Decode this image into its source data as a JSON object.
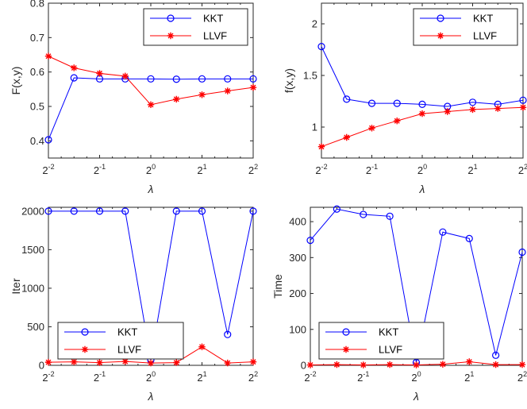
{
  "colors": {
    "kkt": "#0000ff",
    "llvf": "#ff0000",
    "axis": "#262626"
  },
  "chart_data": [
    {
      "type": "line",
      "ylabel": "F(x,y)",
      "xlabel": "λ",
      "x": [
        -2,
        -1.75,
        -1.5,
        -1.25,
        -1,
        -0.75,
        -0.5,
        -0.25,
        0,
        0.25,
        0.5,
        0.75,
        1,
        1.25,
        1.5,
        1.75,
        2
      ],
      "xlim": [
        -2,
        2
      ],
      "ylim": [
        0.35,
        0.8
      ],
      "yticks": [
        0.4,
        0.5,
        0.6,
        0.7,
        0.8
      ],
      "ytick_labels": [
        "0.4",
        "0.5",
        "0.6",
        "0.7",
        "0.8"
      ],
      "xticks": [
        {
          "value": -2,
          "base": "2",
          "exp": "-2"
        },
        {
          "value": -1,
          "base": "2",
          "exp": "-1"
        },
        {
          "value": 0,
          "base": "2",
          "exp": "0"
        },
        {
          "value": 1,
          "base": "2",
          "exp": "1"
        },
        {
          "value": 2,
          "base": "2",
          "exp": "2"
        }
      ],
      "legend_position": "top-right",
      "series": [
        {
          "name": "KKT",
          "x": [
            -2,
            -1.5,
            -1,
            -0.5,
            0,
            0.5,
            1,
            1.5,
            2
          ],
          "values": [
            0.403,
            0.583,
            0.58,
            0.58,
            0.58,
            0.579,
            0.58,
            0.58,
            0.58
          ],
          "marker": "circle",
          "color": "#0000ff"
        },
        {
          "name": "LLVF",
          "x": [
            -2,
            -1.5,
            -1,
            -0.5,
            0,
            0.5,
            1,
            1.5,
            2
          ],
          "values": [
            0.646,
            0.612,
            0.596,
            0.588,
            0.505,
            0.521,
            0.534,
            0.545,
            0.555
          ],
          "marker": "asterisk",
          "color": "#ff0000"
        }
      ]
    },
    {
      "type": "line",
      "ylabel": "f(x,y)",
      "xlabel": "λ",
      "xlim": [
        -2,
        2
      ],
      "ylim": [
        0.7,
        2.2
      ],
      "yticks": [
        1,
        1.5,
        2
      ],
      "ytick_labels": [
        "1",
        "1.5",
        "2"
      ],
      "xticks": [
        {
          "value": -2,
          "base": "2",
          "exp": "-2"
        },
        {
          "value": -1,
          "base": "2",
          "exp": "-1"
        },
        {
          "value": 0,
          "base": "2",
          "exp": "0"
        },
        {
          "value": 1,
          "base": "2",
          "exp": "1"
        },
        {
          "value": 2,
          "base": "2",
          "exp": "2"
        }
      ],
      "legend_position": "top-right",
      "series": [
        {
          "name": "KKT",
          "x": [
            -2,
            -1.5,
            -1,
            -0.5,
            0,
            0.5,
            1,
            1.5,
            2
          ],
          "values": [
            1.78,
            1.27,
            1.23,
            1.23,
            1.22,
            1.2,
            1.24,
            1.22,
            1.26
          ],
          "marker": "circle",
          "color": "#0000ff"
        },
        {
          "name": "LLVF",
          "x": [
            -2,
            -1.5,
            -1,
            -0.5,
            0,
            0.5,
            1,
            1.5,
            2
          ],
          "values": [
            0.81,
            0.9,
            0.99,
            1.06,
            1.13,
            1.15,
            1.17,
            1.18,
            1.19
          ],
          "marker": "asterisk",
          "color": "#ff0000"
        }
      ]
    },
    {
      "type": "line",
      "ylabel": "Iter",
      "xlabel": "λ",
      "xlim": [
        -2,
        2
      ],
      "ylim": [
        0,
        2050
      ],
      "yticks": [
        0,
        500,
        1000,
        1500,
        2000
      ],
      "ytick_labels": [
        "0",
        "500",
        "1000",
        "1500",
        "2000"
      ],
      "xticks": [
        {
          "value": -2,
          "base": "2",
          "exp": "-2"
        },
        {
          "value": -1,
          "base": "2",
          "exp": "-1"
        },
        {
          "value": 0,
          "base": "2",
          "exp": "0"
        },
        {
          "value": 1,
          "base": "2",
          "exp": "1"
        },
        {
          "value": 2,
          "base": "2",
          "exp": "2"
        }
      ],
      "legend_position": "bottom-left",
      "series": [
        {
          "name": "KKT",
          "x": [
            -2,
            -1.5,
            -1,
            -0.5,
            0,
            0.5,
            1,
            1.5,
            2
          ],
          "values": [
            2000,
            2000,
            2000,
            2000,
            70,
            2000,
            2000,
            400,
            2000
          ],
          "marker": "circle",
          "color": "#0000ff"
        },
        {
          "name": "LLVF",
          "x": [
            -2,
            -1.5,
            -1,
            -0.5,
            0,
            0.5,
            1,
            1.5,
            2
          ],
          "values": [
            40,
            45,
            35,
            50,
            30,
            35,
            240,
            30,
            45
          ],
          "marker": "asterisk",
          "color": "#ff0000"
        }
      ]
    },
    {
      "type": "line",
      "ylabel": "Time",
      "xlabel": "λ",
      "xlim": [
        -2,
        2
      ],
      "ylim": [
        0,
        440
      ],
      "yticks": [
        0,
        100,
        200,
        300,
        400
      ],
      "ytick_labels": [
        "0",
        "100",
        "200",
        "300",
        "400"
      ],
      "xticks": [
        {
          "value": -2,
          "base": "2",
          "exp": "-2"
        },
        {
          "value": -1,
          "base": "2",
          "exp": "-1"
        },
        {
          "value": 0,
          "base": "2",
          "exp": "0"
        },
        {
          "value": 1,
          "base": "2",
          "exp": "1"
        },
        {
          "value": 2,
          "base": "2",
          "exp": "2"
        }
      ],
      "legend_position": "bottom-left",
      "series": [
        {
          "name": "KKT",
          "x": [
            -2,
            -1.5,
            -1,
            -0.5,
            0,
            0.5,
            1,
            1.5,
            2
          ],
          "values": [
            348,
            435,
            420,
            415,
            8,
            371,
            353,
            28,
            315
          ],
          "marker": "circle",
          "color": "#0000ff"
        },
        {
          "name": "LLVF",
          "x": [
            -2,
            -1.5,
            -1,
            -0.5,
            0,
            0.5,
            1,
            1.5,
            2
          ],
          "values": [
            1,
            2,
            1,
            2,
            1,
            3,
            10,
            2,
            2
          ],
          "marker": "asterisk",
          "color": "#ff0000"
        }
      ]
    }
  ]
}
